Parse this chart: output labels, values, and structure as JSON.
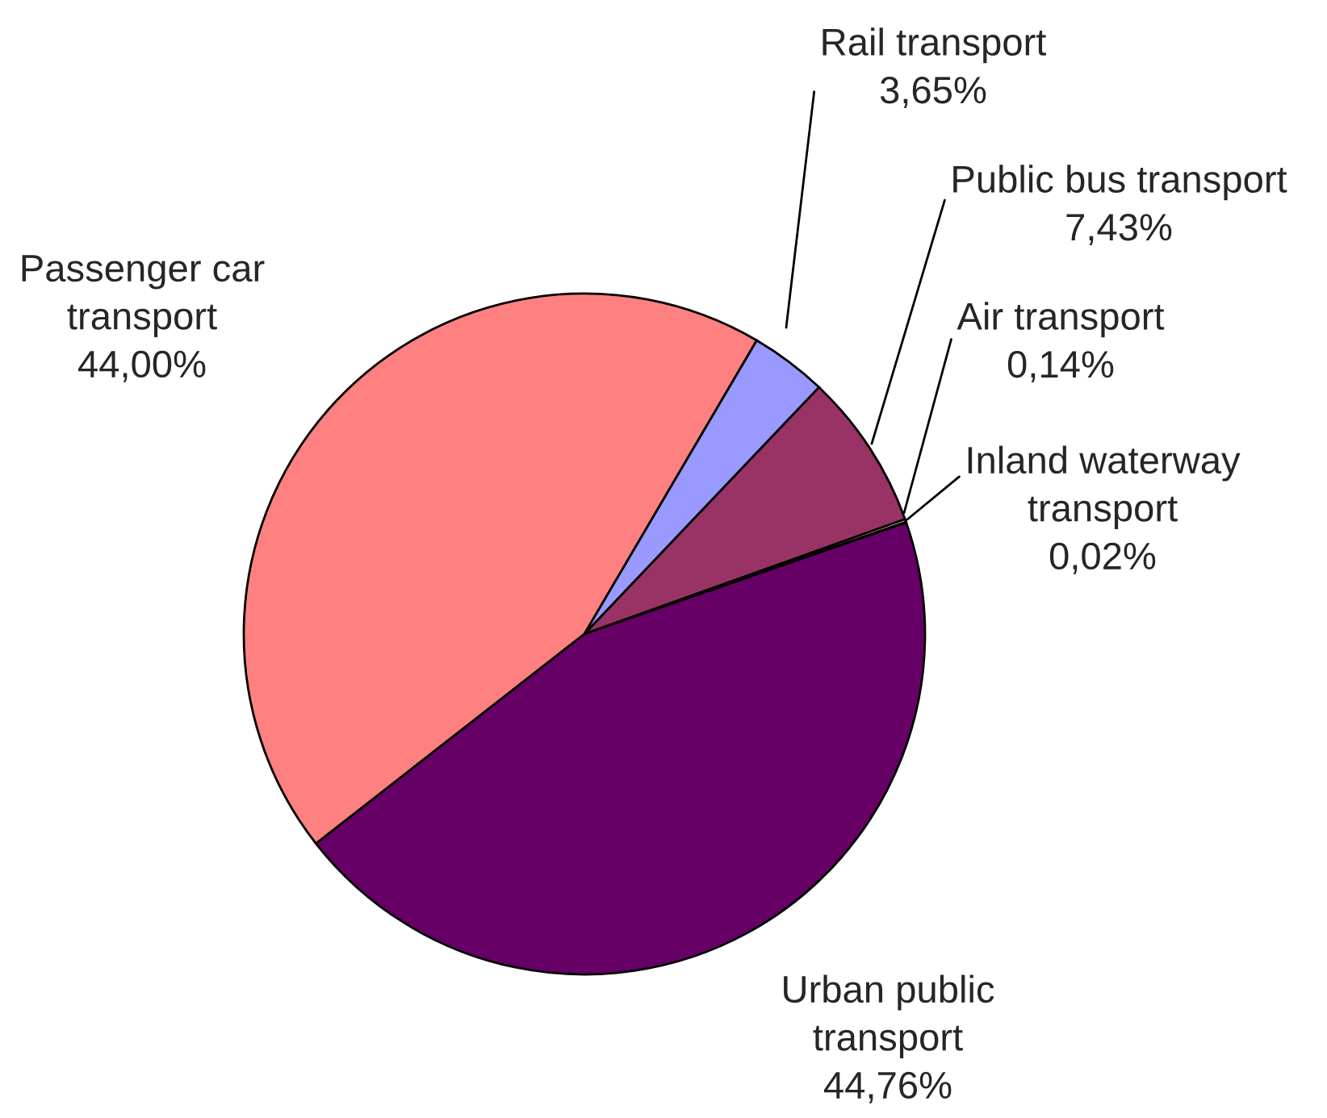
{
  "chart_data": {
    "type": "pie",
    "categories": [
      "Passenger car\ntransport",
      "Rail transport",
      "Public bus transport",
      "Air transport",
      "Inland waterway\ntransport",
      "Urban public\ntransport"
    ],
    "values": [
      44.0,
      3.65,
      7.43,
      0.14,
      0.02,
      44.76
    ],
    "value_labels": [
      "44,00%",
      "3,65%",
      "7,43%",
      "0,14%",
      "0,02%",
      "44,76%"
    ],
    "colors": [
      "#ff8080",
      "#9999ff",
      "#993366",
      "#ffffcc",
      "#ccffff",
      "#660066"
    ],
    "legend": false
  }
}
